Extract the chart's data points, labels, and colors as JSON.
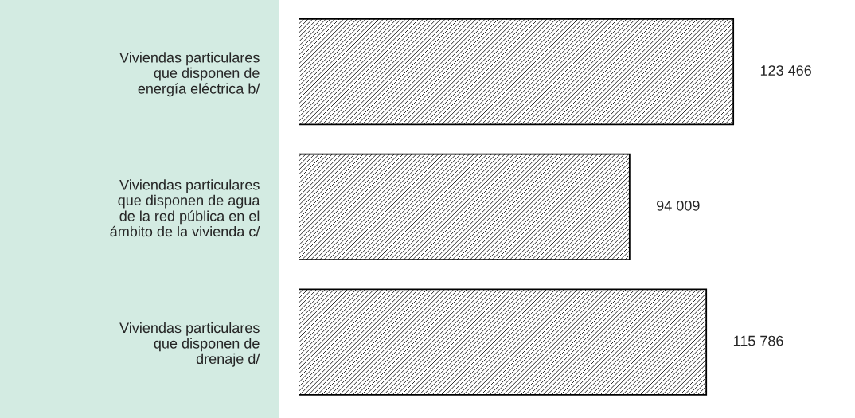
{
  "chart_data": {
    "type": "bar",
    "orientation": "horizontal",
    "categories": [
      "Viviendas particulares\nque disponen de\nenergía eléctrica b/",
      "Viviendas particulares\nque disponen de agua\nde la red pública en el\námbito de la vivienda c/",
      "Viviendas particulares\nque disponen de\ndrenaje d/"
    ],
    "values": [
      123466,
      94009,
      115786
    ],
    "value_labels": [
      "123 466",
      "94 009",
      "115 786"
    ],
    "color": "#000000",
    "grid": false,
    "legend": false
  }
}
